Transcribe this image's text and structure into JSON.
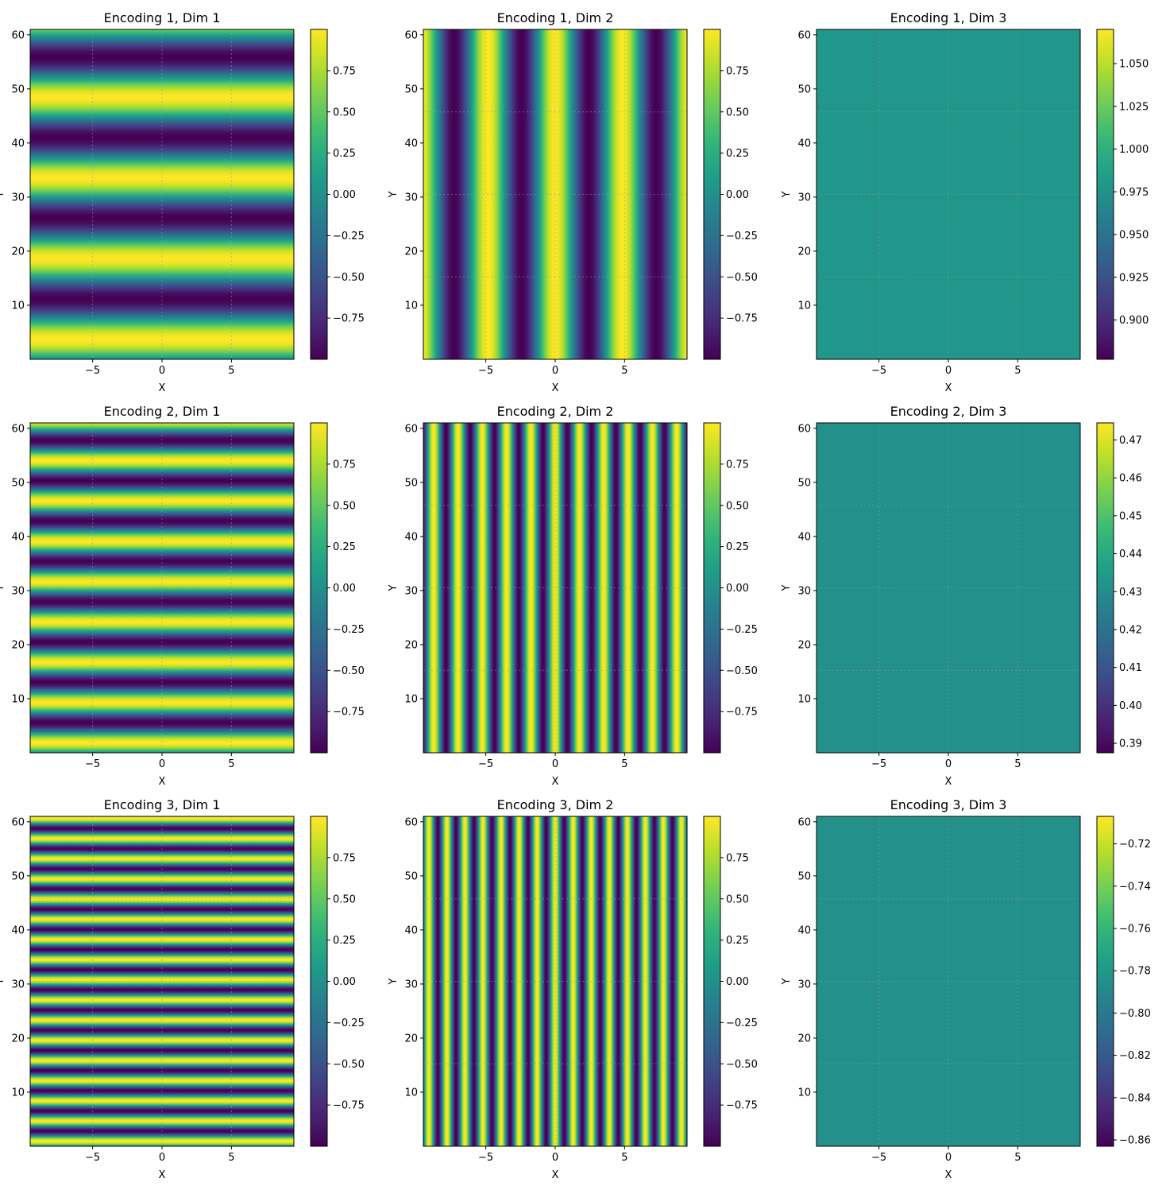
{
  "figure": {
    "background": "#ffffff",
    "colormap": "viridis",
    "grid": true
  },
  "chart_data": [
    {
      "type": "heatmap",
      "title": "Encoding 1, Dim 1",
      "xlabel": "X",
      "ylabel": "Y",
      "xlim": [
        -9.5,
        9.5
      ],
      "ylim": [
        0,
        61
      ],
      "xticks": [
        "−5",
        "0",
        "5"
      ],
      "yticks": [
        "10",
        "20",
        "30",
        "40",
        "50",
        "60"
      ],
      "pattern": {
        "kind": "horizontal-stripes",
        "function": "sin",
        "period": 14.9
      },
      "colorbar": {
        "range": [
          -1,
          1
        ],
        "ticks": [
          "−0.75",
          "−0.50",
          "−0.25",
          "0.00",
          "0.25",
          "0.50",
          "0.75"
        ]
      }
    },
    {
      "type": "heatmap",
      "title": "Encoding 1, Dim 2",
      "xlabel": "X",
      "ylabel": "Y",
      "xlim": [
        -9.5,
        9.5
      ],
      "ylim": [
        0,
        61
      ],
      "xticks": [
        "−5",
        "0",
        "5"
      ],
      "yticks": [
        "10",
        "20",
        "30",
        "40",
        "50",
        "60"
      ],
      "pattern": {
        "kind": "vertical-stripes",
        "function": "cos",
        "period": 4.85
      },
      "colorbar": {
        "range": [
          -1,
          1
        ],
        "ticks": [
          "−0.75",
          "−0.50",
          "−0.25",
          "0.00",
          "0.25",
          "0.50",
          "0.75"
        ]
      }
    },
    {
      "type": "heatmap",
      "title": "Encoding 1, Dim 3",
      "xlabel": "X",
      "ylabel": "Y",
      "xlim": [
        -9.5,
        9.5
      ],
      "ylim": [
        0,
        61
      ],
      "xticks": [
        "−5",
        "0",
        "5"
      ],
      "yticks": [
        "10",
        "20",
        "30",
        "40",
        "50",
        "60"
      ],
      "pattern": {
        "kind": "constant",
        "value": 0.978
      },
      "colorbar": {
        "range": [
          0.877,
          1.07
        ],
        "ticks": [
          "0.900",
          "0.925",
          "0.950",
          "0.975",
          "1.000",
          "1.025",
          "1.050"
        ]
      }
    },
    {
      "type": "heatmap",
      "title": "Encoding 2, Dim 1",
      "xlabel": "X",
      "ylabel": "Y",
      "xlim": [
        -9.5,
        9.5
      ],
      "ylim": [
        0,
        61
      ],
      "xticks": [
        "−5",
        "0",
        "5"
      ],
      "yticks": [
        "10",
        "20",
        "30",
        "40",
        "50",
        "60"
      ],
      "pattern": {
        "kind": "horizontal-stripes",
        "function": "sin",
        "period": 7.45
      },
      "colorbar": {
        "range": [
          -1,
          1
        ],
        "ticks": [
          "−0.75",
          "−0.50",
          "−0.25",
          "0.00",
          "0.25",
          "0.50",
          "0.75"
        ]
      }
    },
    {
      "type": "heatmap",
      "title": "Encoding 2, Dim 2",
      "xlabel": "X",
      "ylabel": "Y",
      "xlim": [
        -9.5,
        9.5
      ],
      "ylim": [
        0,
        61
      ],
      "xticks": [
        "−5",
        "0",
        "5"
      ],
      "yticks": [
        "10",
        "20",
        "30",
        "40",
        "50",
        "60"
      ],
      "pattern": {
        "kind": "vertical-stripes",
        "function": "cos",
        "period": 1.75
      },
      "colorbar": {
        "range": [
          -1,
          1
        ],
        "ticks": [
          "−0.75",
          "−0.50",
          "−0.25",
          "0.00",
          "0.25",
          "0.50",
          "0.75"
        ]
      }
    },
    {
      "type": "heatmap",
      "title": "Encoding 2, Dim 3",
      "xlabel": "X",
      "ylabel": "Y",
      "xlim": [
        -9.5,
        9.5
      ],
      "ylim": [
        0,
        61
      ],
      "xticks": [
        "−5",
        "0",
        "5"
      ],
      "yticks": [
        "10",
        "20",
        "30",
        "40",
        "50",
        "60"
      ],
      "pattern": {
        "kind": "constant",
        "value": 0.431
      },
      "colorbar": {
        "range": [
          0.3875,
          0.4745
        ],
        "ticks": [
          "0.39",
          "0.40",
          "0.41",
          "0.42",
          "0.43",
          "0.44",
          "0.45",
          "0.46",
          "0.47"
        ]
      }
    },
    {
      "type": "heatmap",
      "title": "Encoding 3, Dim 1",
      "xlabel": "X",
      "ylabel": "Y",
      "xlim": [
        -9.5,
        9.5
      ],
      "ylim": [
        0,
        61
      ],
      "xticks": [
        "−5",
        "0",
        "5"
      ],
      "yticks": [
        "10",
        "20",
        "30",
        "40",
        "50",
        "60"
      ],
      "pattern": {
        "kind": "horizontal-stripes",
        "function": "sin",
        "period": 3.73
      },
      "colorbar": {
        "range": [
          -1,
          1
        ],
        "ticks": [
          "−0.75",
          "−0.50",
          "−0.25",
          "0.00",
          "0.25",
          "0.50",
          "0.75"
        ]
      }
    },
    {
      "type": "heatmap",
      "title": "Encoding 3, Dim 2",
      "xlabel": "X",
      "ylabel": "Y",
      "xlim": [
        -9.5,
        9.5
      ],
      "ylim": [
        0,
        61
      ],
      "xticks": [
        "−5",
        "0",
        "5"
      ],
      "yticks": [
        "10",
        "20",
        "30",
        "40",
        "50",
        "60"
      ],
      "pattern": {
        "kind": "vertical-stripes",
        "function": "cos",
        "period": 1.3
      },
      "colorbar": {
        "range": [
          -1,
          1
        ],
        "ticks": [
          "−0.75",
          "−0.50",
          "−0.25",
          "0.00",
          "0.25",
          "0.50",
          "0.75"
        ]
      }
    },
    {
      "type": "heatmap",
      "title": "Encoding 3, Dim 3",
      "xlabel": "X",
      "ylabel": "Y",
      "xlim": [
        -9.5,
        9.5
      ],
      "ylim": [
        0,
        61
      ],
      "xticks": [
        "−5",
        "0",
        "5"
      ],
      "yticks": [
        "10",
        "20",
        "30",
        "40",
        "50",
        "60"
      ],
      "pattern": {
        "kind": "constant",
        "value": -0.785
      },
      "colorbar": {
        "range": [
          -0.863,
          -0.707
        ],
        "ticks": [
          "−0.86",
          "−0.84",
          "−0.82",
          "−0.80",
          "−0.78",
          "−0.76",
          "−0.74",
          "−0.72"
        ]
      }
    }
  ]
}
